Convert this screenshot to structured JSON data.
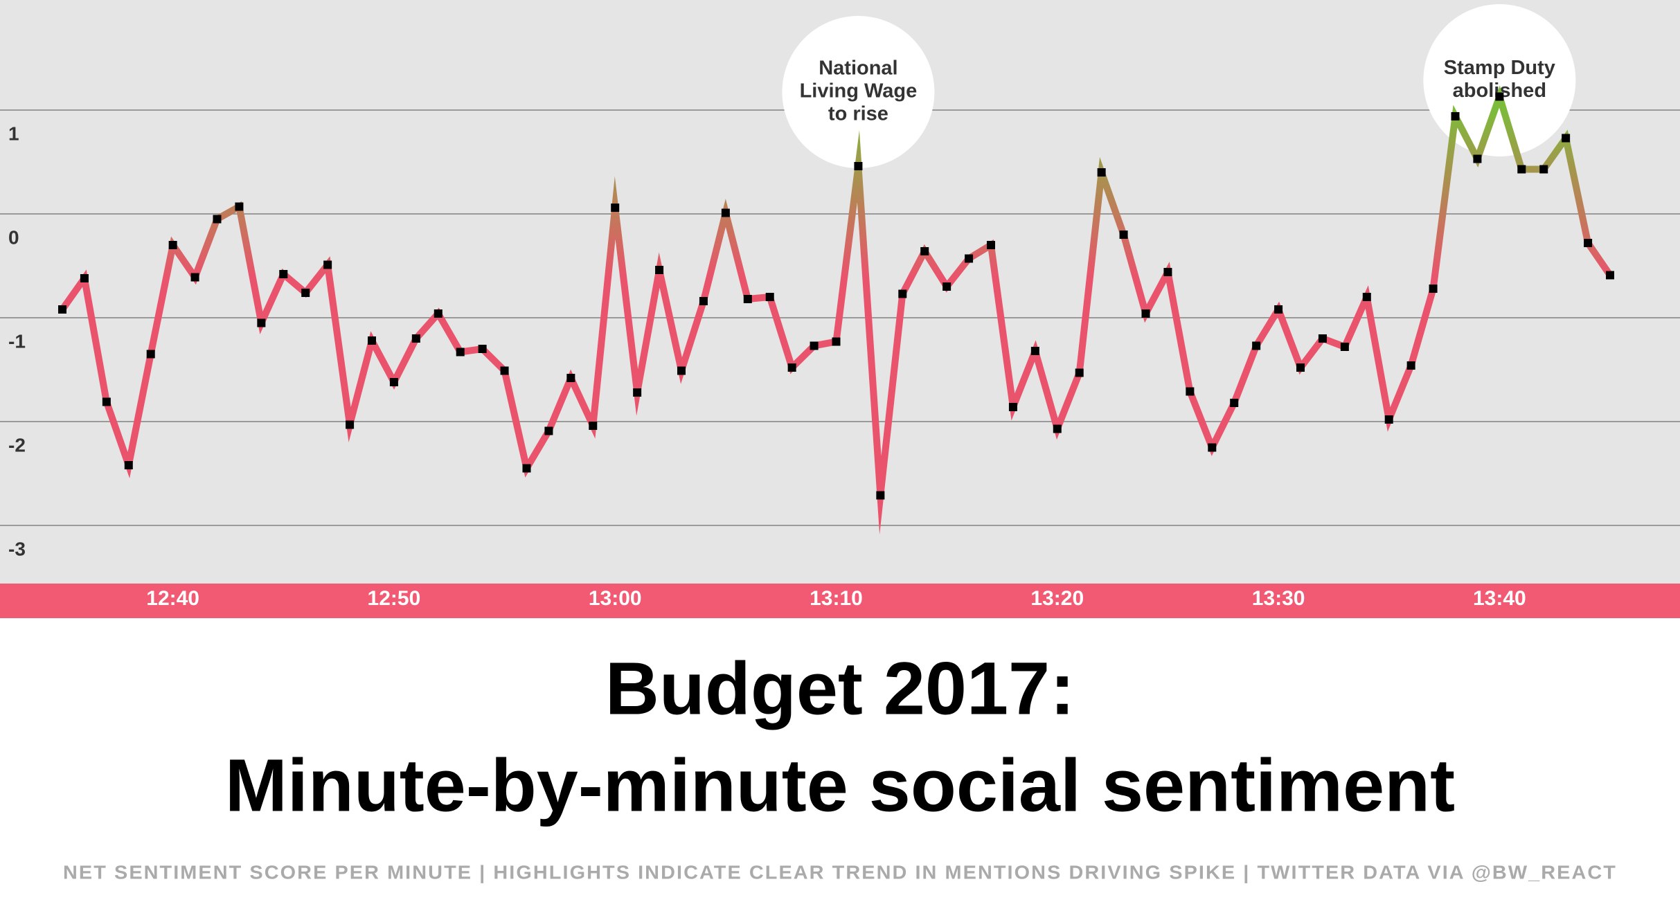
{
  "chart_data": {
    "type": "line",
    "title": [
      "Budget 2017:",
      "Minute-by-minute social sentiment"
    ],
    "subtitle": "NET SENTIMENT SCORE PER MINUTE | HIGHLIGHTS INDICATE CLEAR TREND IN MENTIONS DRIVING SPIKE | TWITTER DATA VIA @BW_REACT",
    "x": [
      "12:35",
      "12:36",
      "12:37",
      "12:38",
      "12:39",
      "12:40",
      "12:41",
      "12:42",
      "12:43",
      "12:44",
      "12:45",
      "12:46",
      "12:47",
      "12:48",
      "12:49",
      "12:50",
      "12:51",
      "12:52",
      "12:53",
      "12:54",
      "12:55",
      "12:56",
      "12:57",
      "12:58",
      "12:59",
      "13:00",
      "13:01",
      "13:02",
      "13:03",
      "13:04",
      "13:05",
      "13:06",
      "13:07",
      "13:08",
      "13:09",
      "13:10",
      "13:11",
      "13:12",
      "13:13",
      "13:14",
      "13:15",
      "13:16",
      "13:17",
      "13:18",
      "13:19",
      "13:20",
      "13:21",
      "13:22",
      "13:23",
      "13:24",
      "13:25",
      "13:26",
      "13:27",
      "13:28",
      "13:29",
      "13:30",
      "13:31",
      "13:32",
      "13:33",
      "13:34",
      "13:35",
      "13:36",
      "13:37",
      "13:38",
      "13:39",
      "13:40",
      "13:41",
      "13:42",
      "13:43",
      "13:44",
      "13:45"
    ],
    "series": [
      {
        "name": "Net sentiment",
        "color_positive": "#7dbb3a",
        "color_negative": "#e9546c",
        "values": [
          -0.92,
          -0.62,
          -1.81,
          -2.42,
          -1.35,
          -0.3,
          -0.61,
          -0.05,
          0.07,
          -1.05,
          -0.58,
          -0.76,
          -0.49,
          -2.03,
          -1.22,
          -1.62,
          -1.2,
          -0.96,
          -1.33,
          -1.3,
          -1.51,
          -2.45,
          -2.09,
          -1.58,
          -2.04,
          0.06,
          -1.72,
          -0.54,
          -1.51,
          -0.84,
          0.01,
          -0.82,
          -0.8,
          -1.48,
          -1.27,
          -1.23,
          0.46,
          -2.71,
          -0.77,
          -0.36,
          -0.7,
          -0.43,
          -0.3,
          -1.86,
          -1.32,
          -2.07,
          -1.53,
          0.4,
          -0.2,
          -0.96,
          -0.56,
          -1.71,
          -2.25,
          -1.82,
          -1.27,
          -0.92,
          -1.48,
          -1.2,
          -1.28,
          -0.8,
          -1.98,
          -1.46,
          -0.72,
          0.94,
          0.53,
          1.13,
          0.43,
          0.43,
          0.73,
          -0.28,
          -0.59
        ]
      }
    ],
    "xticks": [
      "12:40",
      "12:50",
      "13:00",
      "13:10",
      "13:20",
      "13:30",
      "13:40"
    ],
    "ylim": [
      -3.56,
      2.06
    ],
    "yticks": [
      -3,
      -2,
      -1,
      0,
      1
    ],
    "grid": true,
    "annotations": [
      {
        "x": "13:11",
        "text": [
          "National",
          "Living Wage",
          "to rise"
        ]
      },
      {
        "x": "13:40",
        "text": [
          "Stamp Duty",
          "abolished"
        ]
      }
    ]
  }
}
